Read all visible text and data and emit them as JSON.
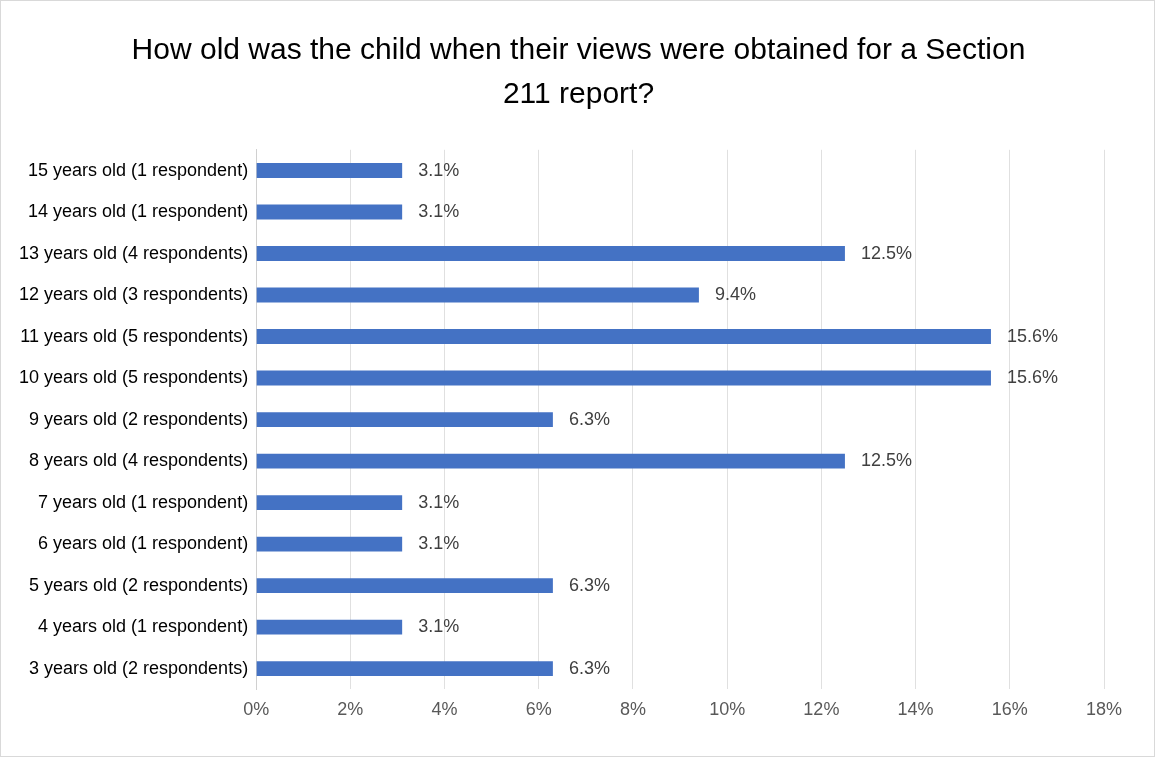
{
  "chart_data": {
    "type": "bar",
    "orientation": "horizontal",
    "title": "How old was the child when their views were obtained for a Section 211 report?",
    "categories": [
      "15 years old (1 respondent)",
      "14 years old (1 respondent)",
      "13 years old (4 respondents)",
      "12 years old (3 respondents)",
      "11 years old (5 respondents)",
      "10 years old (5 respondents)",
      "9 years old (2 respondents)",
      "8 years old (4 respondents)",
      "7 years old (1 respondent)",
      "6 years old (1 respondent)",
      "5 years old (2 respondents)",
      "4 years old (1 respondent)",
      "3 years old (2 respondents)"
    ],
    "values": [
      3.1,
      3.1,
      12.5,
      9.4,
      15.6,
      15.6,
      6.3,
      12.5,
      3.1,
      3.1,
      6.3,
      3.1,
      6.3
    ],
    "value_labels": [
      "3.1%",
      "3.1%",
      "12.5%",
      "9.4%",
      "15.6%",
      "15.6%",
      "6.3%",
      "12.5%",
      "3.1%",
      "3.1%",
      "6.3%",
      "3.1%",
      "6.3%"
    ],
    "color": "#4472c4",
    "xlim": [
      0,
      18
    ],
    "xticks": [
      {
        "value": 0,
        "label": "0%"
      },
      {
        "value": 2,
        "label": "2%"
      },
      {
        "value": 4,
        "label": "4%"
      },
      {
        "value": 6,
        "label": "6%"
      },
      {
        "value": 8,
        "label": "8%"
      },
      {
        "value": 10,
        "label": "10%"
      },
      {
        "value": 12,
        "label": "12%"
      },
      {
        "value": 14,
        "label": "14%"
      },
      {
        "value": 16,
        "label": "16%"
      },
      {
        "value": 18,
        "label": "18%"
      }
    ],
    "grid": "x",
    "legend": false
  }
}
